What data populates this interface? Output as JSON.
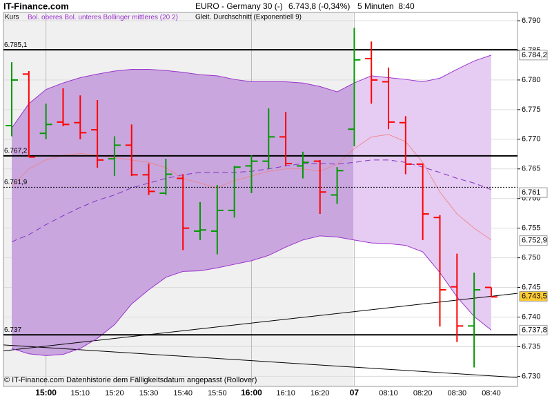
{
  "header": {
    "site": "IT-Finance.com",
    "instrument": "EURO - Germany 30 (-)",
    "quote": "6.743,8 (-0,34%)",
    "interval": "5 Minuten  8:40"
  },
  "footer": "© IT-Finance.com  Datenhistorie dem Fälligkeitsdatum angepasst (Rollover)",
  "chart_data": {
    "type": "ohlc",
    "categories": [
      null,
      null,
      "15:00",
      null,
      "15:10",
      null,
      "15:20",
      null,
      "15:30",
      null,
      "15:40",
      null,
      "15:50",
      null,
      "16:00",
      null,
      "16:10",
      null,
      "16:20",
      null,
      "07",
      null,
      "08:10",
      null,
      "08:20",
      null,
      "08:30",
      null,
      "08:40"
    ],
    "ohlc": {
      "name": "Kurs",
      "up_color": "#009900",
      "down_color": "#ff0000",
      "open": [
        6.7723,
        6.781,
        6.771,
        6.7729,
        6.7728,
        6.7716,
        6.7667,
        6.769,
        6.764,
        6.7609,
        6.7634,
        6.7545,
        6.7545,
        6.758,
        6.7655,
        6.7663,
        6.7704,
        6.7655,
        6.7663,
        6.7606,
        6.7717,
        6.7836,
        6.7797,
        6.7728,
        6.7658,
        6.7568,
        6.7451,
        6.7385,
        6.745
      ],
      "high": [
        6.783,
        6.7815,
        6.776,
        6.7786,
        6.7774,
        6.7766,
        6.7705,
        6.7725,
        6.7659,
        6.7667,
        6.7641,
        6.7594,
        6.7623,
        6.7655,
        6.7673,
        6.7752,
        6.7746,
        6.7679,
        6.7665,
        6.7653,
        6.7888,
        6.7865,
        6.7821,
        6.7739,
        6.7659,
        6.7572,
        6.7507,
        6.7475,
        6.745
      ],
      "low": [
        6.7705,
        6.767,
        6.77,
        6.7722,
        6.77,
        6.7652,
        6.7638,
        6.7638,
        6.7606,
        6.7606,
        6.7513,
        6.753,
        6.7506,
        6.7568,
        6.7609,
        6.765,
        6.7655,
        6.7634,
        6.7574,
        6.7591,
        6.7688,
        6.776,
        6.7717,
        6.7641,
        6.753,
        6.7384,
        6.7358,
        6.7315,
        6.7434
      ],
      "close": [
        6.78,
        6.767,
        6.7725,
        6.7725,
        6.7711,
        6.7665,
        6.769,
        6.764,
        6.7612,
        6.7641,
        6.755,
        6.7547,
        6.758,
        6.7653,
        6.7663,
        6.7704,
        6.7659,
        6.7661,
        6.7611,
        6.7647,
        6.7834,
        6.78,
        6.7729,
        6.7658,
        6.7574,
        6.7446,
        6.7385,
        6.7446,
        6.7434
      ]
    },
    "band_fill": [
      "#c9a6de",
      "#e6cbf2"
    ],
    "series": [
      {
        "name": "Bol. oberes",
        "color": "#9933cc",
        "values": [
          6.7719,
          6.776,
          6.7784,
          6.7795,
          6.7804,
          6.781,
          6.7815,
          6.7818,
          6.7818,
          6.7816,
          6.7813,
          6.7809,
          6.7807,
          6.7801,
          6.7797,
          6.7797,
          6.7797,
          6.7795,
          6.7789,
          6.778,
          6.7795,
          6.7807,
          6.7804,
          6.7801,
          6.7797,
          6.7803,
          6.7818,
          6.7832,
          6.7842
        ]
      },
      {
        "name": "Bol. unteres",
        "color": "#9933cc",
        "values": [
          6.7347,
          6.7338,
          6.7335,
          6.7337,
          6.7347,
          6.7364,
          6.7387,
          6.7422,
          6.7446,
          6.7467,
          6.7477,
          6.7478,
          6.7483,
          6.7489,
          6.7495,
          6.7504,
          6.7518,
          6.753,
          6.7537,
          6.7535,
          6.753,
          6.7525,
          6.7524,
          6.7521,
          6.751,
          6.7475,
          6.7434,
          6.7401,
          6.7378
        ]
      },
      {
        "name": "Bollinger mittleres (20 2)",
        "color": "#8033c0",
        "dashed": true,
        "values": [
          6.7527,
          6.7539,
          6.7556,
          6.7571,
          6.7585,
          6.7597,
          6.7606,
          6.7618,
          6.7626,
          6.7634,
          6.764,
          6.7644,
          6.7644,
          6.7644,
          6.7646,
          6.765,
          6.7655,
          6.7659,
          6.7659,
          6.7658,
          6.7661,
          6.7665,
          6.7665,
          6.7661,
          6.7653,
          6.7644,
          6.7634,
          6.7626,
          6.7615
        ]
      },
      {
        "name": "Gleit. Durchschnitt (Exponentiell 9)",
        "color": "#f08080",
        "values": [
          6.762,
          6.765,
          6.7665,
          6.7673,
          6.7676,
          6.7673,
          6.7669,
          6.7665,
          6.7661,
          6.7652,
          6.7634,
          6.7626,
          6.7618,
          6.763,
          6.7638,
          6.7646,
          6.765,
          6.765,
          6.7646,
          6.7658,
          6.7684,
          6.7704,
          6.7708,
          6.7696,
          6.7661,
          6.7611,
          6.7574,
          6.755,
          6.753
        ]
      }
    ],
    "levels": [
      {
        "value": 6.7851,
        "label": "6.785,1",
        "dotted": false
      },
      {
        "value": 6.7672,
        "label": "6.767,2",
        "dotted": false
      },
      {
        "value": 6.7619,
        "label": "6.761,9",
        "dotted": true
      },
      {
        "value": 6.737,
        "label": "6.737",
        "dotted": false
      }
    ],
    "trendlines": [
      {
        "values": [
          6.7343,
          6.744
        ]
      },
      {
        "values": [
          6.7353,
          6.7298
        ]
      }
    ],
    "last_labels": [
      {
        "value": 6.7842,
        "label": "6.784,2",
        "color": "#9933cc",
        "fill": "#ffffff"
      },
      {
        "value": 6.761,
        "label": "6.761",
        "color": "#ff0000",
        "fill": "#ffffff"
      },
      {
        "value": 6.7529,
        "label": "6.752,9",
        "color": "#f08080",
        "fill": "#ffffff"
      },
      {
        "value": 6.7435,
        "label": "6.743,5",
        "color": "#000000",
        "fill": "#ffcc33"
      },
      {
        "value": 6.7378,
        "label": "6.737,8",
        "color": "#9933cc",
        "fill": "#ffffff"
      }
    ],
    "ylim": [
      6.7283,
      6.7914
    ],
    "yticks": [
      {
        "value": 6.79,
        "label": "6.790"
      },
      6.785,
      {
        "value": 6.78,
        "label": "6.780"
      },
      6.775,
      {
        "value": 6.77,
        "label": "6.770"
      },
      6.765,
      {
        "value": 6.76,
        "label": "6.760"
      },
      6.755,
      {
        "value": 6.75,
        "label": "6.750"
      },
      6.745,
      {
        "value": 6.74,
        "label": "6.740"
      },
      6.735,
      {
        "value": 6.73,
        "label": "6.730"
      }
    ],
    "grid": true
  }
}
